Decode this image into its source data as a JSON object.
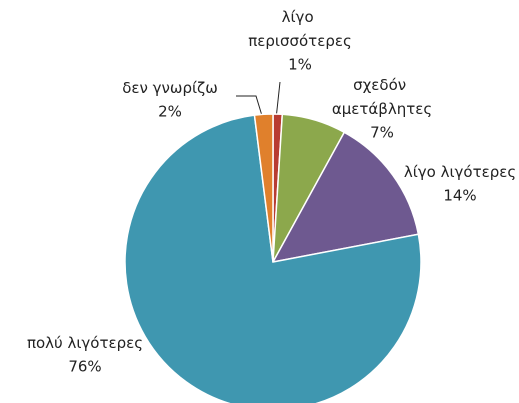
{
  "chart_data": {
    "type": "pie",
    "categories": [
      "λίγο περισσότερες",
      "σχεδόν αμετάβλητες",
      "λίγο λιγότερες",
      "πολύ λιγότερες",
      "δεν γνωρίζω"
    ],
    "values": [
      1,
      7,
      14,
      76,
      2
    ],
    "value_labels": [
      "1%",
      "7%",
      "14%",
      "76%",
      "2%"
    ],
    "colors": [
      "#b83c32",
      "#8ca84c",
      "#6e5990",
      "#3f97b0",
      "#e0802c"
    ]
  }
}
